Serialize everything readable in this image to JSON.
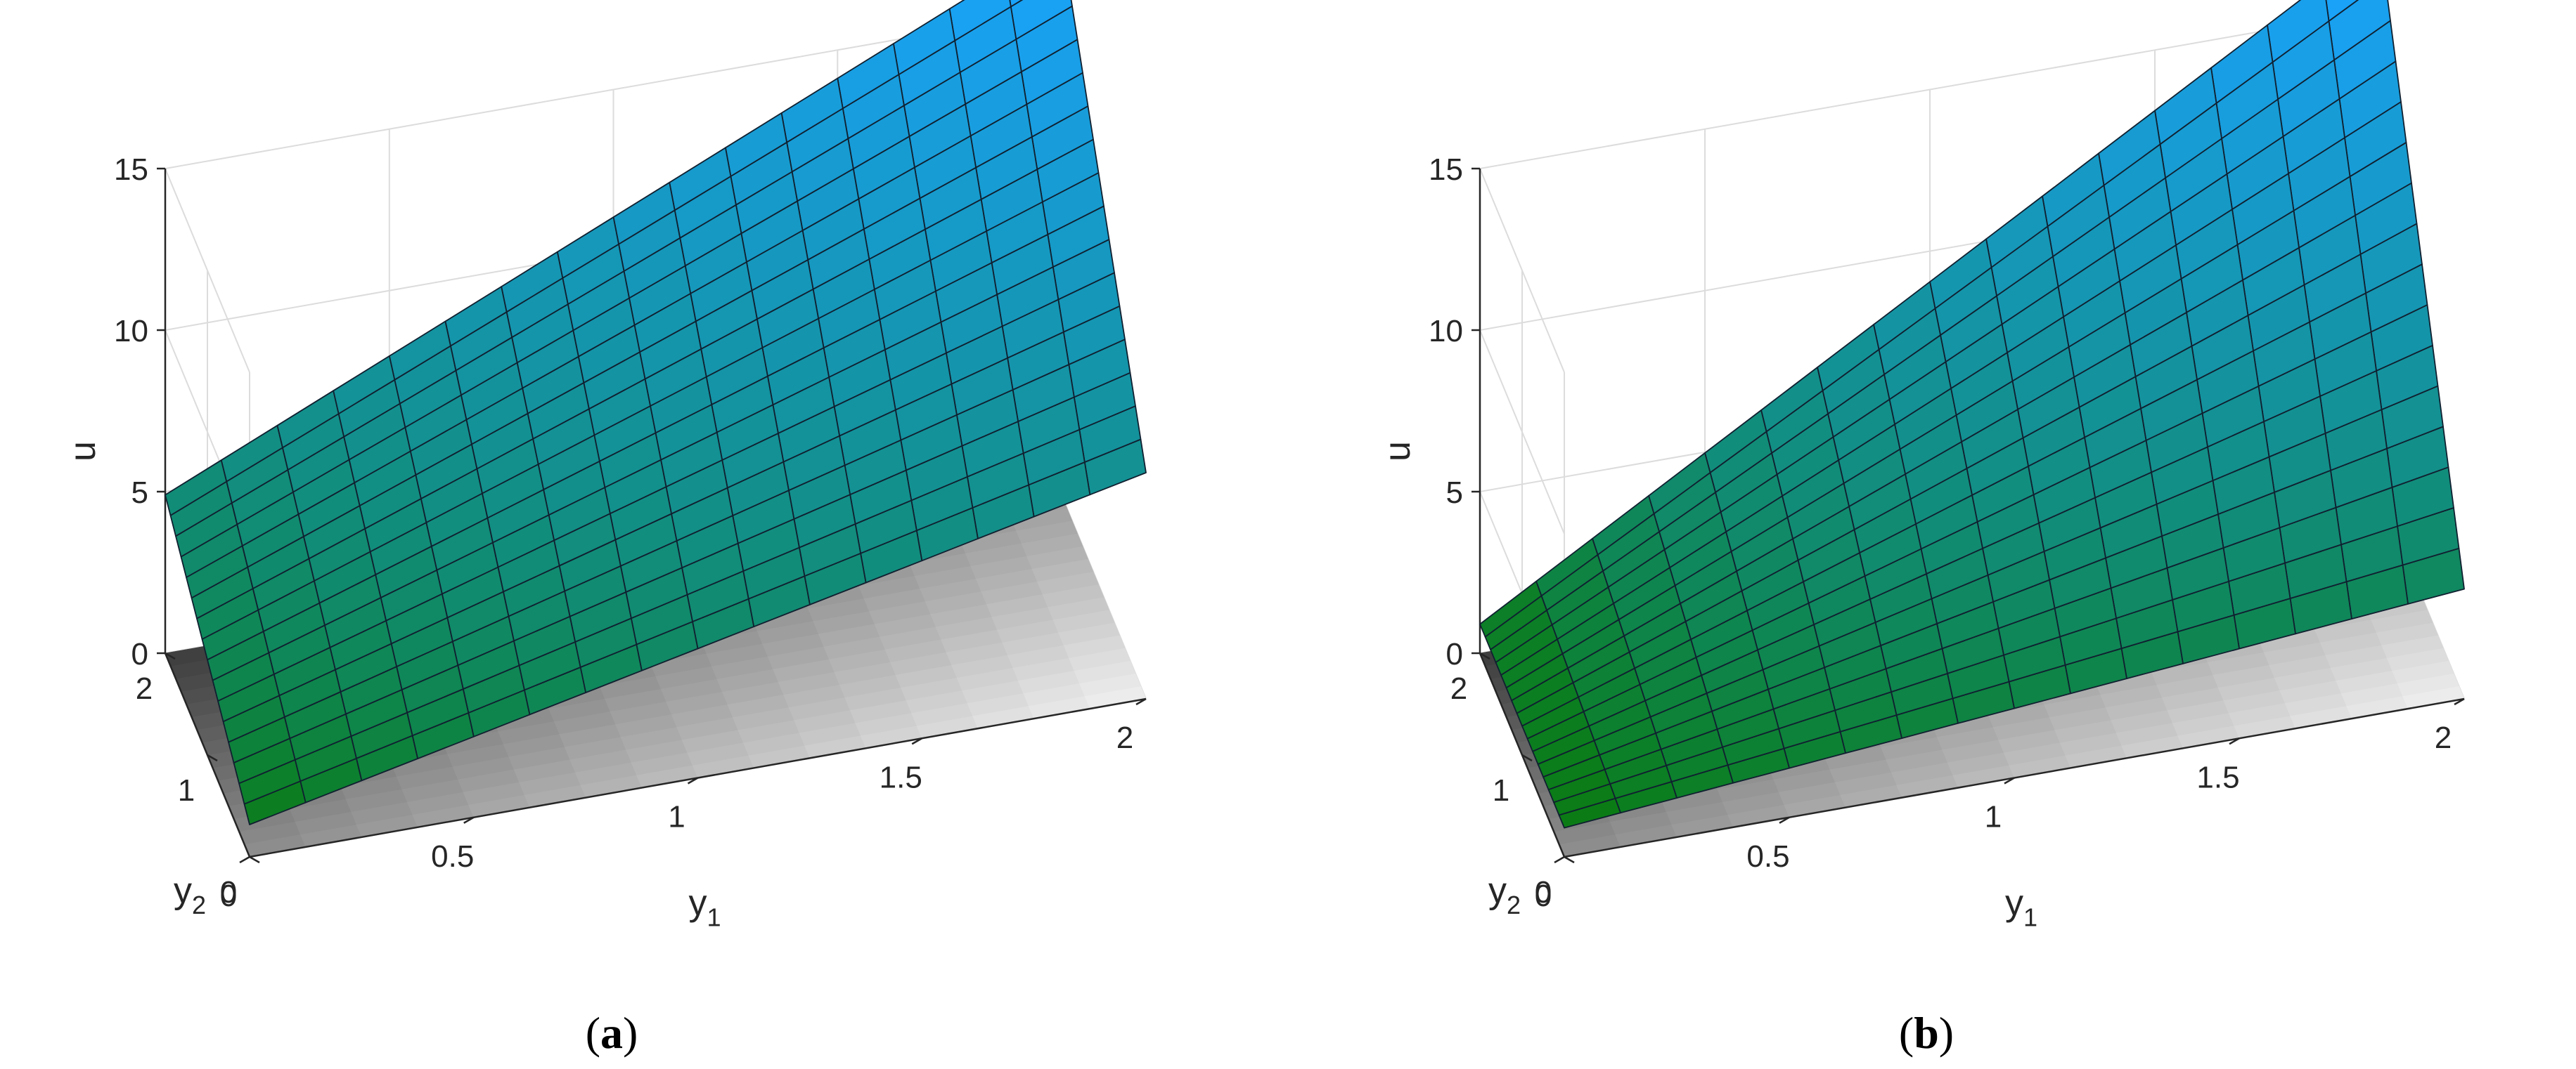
{
  "chart_data": [
    {
      "type": "surface3d",
      "caption": {
        "open": "(",
        "letter": "a",
        "close": ")"
      },
      "xlabel": {
        "base": "y",
        "sub": "1"
      },
      "ylabel": {
        "base": "y",
        "sub": "2"
      },
      "zlabel": "u",
      "xlim": [
        0,
        2
      ],
      "ylim": [
        0,
        2
      ],
      "zlim": [
        0,
        15
      ],
      "xticks": [
        "0",
        "0.5",
        "1",
        "1.5",
        "2"
      ],
      "yticks": [
        "0",
        "1",
        "2"
      ],
      "zticks": [
        "0",
        "5",
        "10",
        "15"
      ],
      "grid": true,
      "mesh": 16,
      "surface_corners": {
        "u_at_y1_0_y2_0": 1.0,
        "u_at_y1_2_y2_0": 7.0,
        "u_at_y1_0_y2_2": 4.9,
        "u_at_y1_2_y2_2": 17.2
      },
      "surface_colors": {
        "low": "#0a7a0a",
        "high": "#1aa3ff"
      },
      "floor_shading": {
        "light": "#f2f2f2",
        "dark": "#3a3a3a"
      }
    },
    {
      "type": "surface3d",
      "caption": {
        "open": "(",
        "letter": "b",
        "close": ")"
      },
      "xlabel": {
        "base": "y",
        "sub": "1"
      },
      "ylabel": {
        "base": "y",
        "sub": "2"
      },
      "zlabel": "u",
      "xlim": [
        0,
        2
      ],
      "ylim": [
        0,
        2
      ],
      "zlim": [
        0,
        15
      ],
      "xticks": [
        "0",
        "0.5",
        "1",
        "1.5",
        "2"
      ],
      "yticks": [
        "0",
        "1",
        "2"
      ],
      "zticks": [
        "0",
        "5",
        "10",
        "15"
      ],
      "grid": true,
      "mesh": 16,
      "surface_corners": {
        "u_at_y1_0_y2_0": 0.9,
        "u_at_y1_2_y2_0": 3.4,
        "u_at_y1_0_y2_2": 0.9,
        "u_at_y1_2_y2_2": 17.2
      },
      "surface_colors": {
        "low": "#0a7a0a",
        "high": "#1aa3ff"
      },
      "floor_shading": {
        "light": "#f2f2f2",
        "dark": "#3a3a3a"
      }
    }
  ]
}
